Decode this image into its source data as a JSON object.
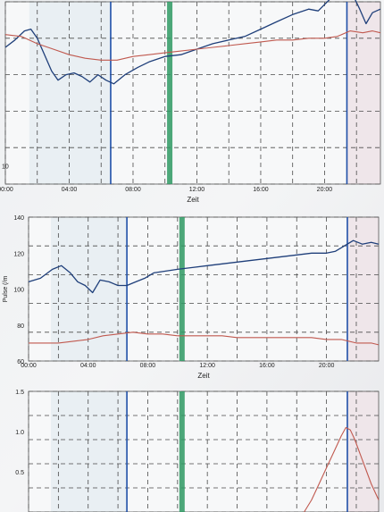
{
  "colors": {
    "blue_series": "#1f3f7a",
    "red_series": "#c0594f",
    "marker_blue": "#1f4fa8",
    "marker_green": "#2f9a63",
    "gridline": "#4a4a4a",
    "shade": "#d8e4ec",
    "shade_right": "#e9dbe0"
  },
  "chart_data": [
    {
      "type": "line",
      "x_tick_labels": [
        "00:00",
        "04:00",
        "08:00",
        "12:00",
        "16:00",
        "20:00"
      ],
      "xlabel": "Zeit",
      "y_tick_labels": [
        "10"
      ],
      "xlim": [
        0,
        23.5
      ],
      "ylim": [
        0,
        100
      ],
      "grid": true,
      "markers": {
        "blue_lines": [
          6.6,
          21.4
        ],
        "green_line": 10.3
      },
      "series": [
        {
          "color": "blue",
          "x": [
            0,
            0.6,
            1.2,
            1.6,
            2.0,
            2.4,
            2.9,
            3.3,
            3.8,
            4.3,
            4.8,
            5.3,
            5.8,
            6.3,
            6.8,
            7.5,
            8.3,
            9.0,
            10.0,
            11.0,
            12.0,
            13.0,
            14.0,
            15.0,
            16.0,
            17.0,
            18.0,
            19.0,
            19.6,
            20.4,
            21.0,
            21.6,
            22.2,
            22.6,
            23.0,
            23.5
          ],
          "y": [
            75,
            79,
            84,
            85,
            80,
            72,
            62,
            57,
            60,
            61,
            59,
            56,
            60,
            57,
            55,
            60,
            64,
            67,
            70,
            71,
            74,
            77,
            79,
            81,
            85,
            89,
            93,
            96,
            95,
            102,
            110,
            107,
            96,
            88,
            94,
            96
          ]
        },
        {
          "color": "red",
          "x": [
            0,
            1.0,
            2.0,
            3.0,
            4.0,
            5.0,
            6.0,
            7.0,
            8.0,
            9.0,
            10.0,
            11.0,
            12.0,
            13.0,
            14.0,
            15.0,
            16.0,
            17.0,
            18.0,
            19.0,
            20.0,
            20.8,
            21.6,
            22.4,
            23.0,
            23.5
          ],
          "y": [
            82,
            81,
            77,
            74,
            71,
            69,
            68,
            68,
            70,
            71,
            72,
            73,
            74,
            75,
            76,
            77,
            78,
            79,
            79,
            80,
            80,
            81,
            84,
            83,
            84,
            83
          ]
        }
      ]
    },
    {
      "type": "line",
      "x_tick_labels": [
        "00:00",
        "04:00",
        "08:00",
        "12:00",
        "16:00",
        "20:00"
      ],
      "xlabel": "Zeit",
      "ylabel": "Pulse (/m",
      "y_tick_labels": [
        "60",
        "80",
        "100",
        "120",
        "140"
      ],
      "xlim": [
        0,
        23.5
      ],
      "ylim": [
        60,
        140
      ],
      "grid": true,
      "markers": {
        "blue_lines": [
          6.6,
          21.4
        ],
        "green_line": 10.3
      },
      "series": [
        {
          "color": "blue",
          "x": [
            0,
            0.8,
            1.6,
            2.2,
            2.8,
            3.3,
            3.8,
            4.3,
            4.8,
            5.4,
            6.0,
            6.6,
            7.2,
            7.8,
            8.4,
            9.2,
            10.0,
            11.0,
            12.0,
            13.0,
            14.0,
            15.0,
            16.0,
            17.0,
            18.0,
            19.0,
            20.0,
            20.6,
            21.2,
            21.8,
            22.4,
            23.0,
            23.5
          ],
          "y": [
            104,
            106,
            111,
            113,
            109,
            104,
            102,
            98,
            105,
            104,
            102,
            102,
            104,
            106,
            109,
            110,
            111,
            112,
            113,
            114,
            115,
            116,
            117,
            118,
            119,
            120,
            120,
            121,
            124,
            127,
            125,
            126,
            125
          ]
        },
        {
          "color": "red",
          "x": [
            0,
            1.0,
            2.0,
            3.0,
            4.0,
            5.0,
            6.0,
            7.0,
            8.0,
            9.0,
            10.0,
            11.0,
            12.0,
            13.0,
            14.0,
            15.0,
            16.0,
            17.0,
            18.0,
            19.0,
            20.0,
            21.0,
            22.0,
            23.0,
            23.5
          ],
          "y": [
            70,
            70,
            70,
            71,
            72,
            74,
            75,
            76,
            75,
            75,
            74,
            74,
            74,
            74,
            73,
            73,
            73,
            73,
            73,
            73,
            72,
            72,
            70,
            70,
            69
          ]
        }
      ]
    },
    {
      "type": "line",
      "y_tick_labels": [
        "0.5",
        "1.0",
        "1.5"
      ],
      "xlim": [
        0,
        23.5
      ],
      "ylim": [
        0,
        1.5
      ],
      "grid": true,
      "markers": {
        "blue_lines": [
          6.6,
          21.4
        ],
        "green_line": 10.3
      },
      "series": [
        {
          "color": "red",
          "x": [
            18.5,
            19.0,
            19.5,
            20.0,
            20.5,
            21.0,
            21.3,
            21.6,
            21.9,
            22.2,
            22.6,
            23.0,
            23.5
          ],
          "y": [
            0.0,
            0.15,
            0.35,
            0.55,
            0.75,
            0.95,
            1.05,
            1.02,
            0.9,
            0.75,
            0.55,
            0.35,
            0.15
          ]
        }
      ]
    }
  ]
}
